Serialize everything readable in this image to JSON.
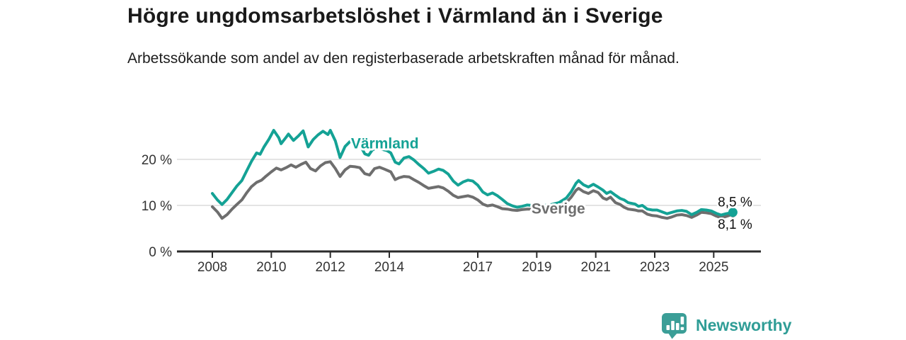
{
  "header": {
    "title": "Högre ungdomsarbetslöshet i Värmland än i Sverige",
    "subtitle": "Arbetssökande som andel av den registerbaserade arbetskraften månad för månad."
  },
  "footer": {
    "brand": "Newsworthy"
  },
  "colors": {
    "varmland": "#14a295",
    "sverige": "#6e6e6e",
    "grid": "#dcdcdc",
    "axis": "#2b2b2b",
    "tick_text": "#333333",
    "title_text": "#1a1a1a",
    "brand_teal": "#2f9d96"
  },
  "chart_data": {
    "type": "line",
    "title": "Högre ungdomsarbetslöshet i Värmland än i Sverige",
    "subtitle": "Arbetssökande som andel av den registerbaserade arbetskraften månad för månad.",
    "x_unit": "year (monthly observations)",
    "y_unit": "percent of labour force",
    "xlim": [
      2006.8,
      2026.6
    ],
    "ylim": [
      0,
      30
    ],
    "grid": "horizontal",
    "legend_position": "inline-labels",
    "y_ticks": [
      {
        "label": "0 %",
        "value": 0
      },
      {
        "label": "10 %",
        "value": 10
      },
      {
        "label": "20 %",
        "value": 20
      }
    ],
    "x_ticks": [
      {
        "label": "2008",
        "value": 2008
      },
      {
        "label": "2010",
        "value": 2010
      },
      {
        "label": "2012",
        "value": 2012
      },
      {
        "label": "2014",
        "value": 2014
      },
      {
        "label": "2017",
        "value": 2017
      },
      {
        "label": "2019",
        "value": 2019
      },
      {
        "label": "2021",
        "value": 2021
      },
      {
        "label": "2023",
        "value": 2023
      },
      {
        "label": "2025",
        "value": 2025
      }
    ],
    "series": [
      {
        "name": "Värmland",
        "color": "#14a295",
        "label_anchor": {
          "x": 2012.7,
          "y": 22.4
        },
        "end_dot_radius": 6.5,
        "end_label": {
          "text": "8,5 %",
          "x": 2025.14,
          "y": 9.8
        },
        "points": [
          [
            2008.0,
            12.6
          ],
          [
            2008.17,
            11.2
          ],
          [
            2008.33,
            10.2
          ],
          [
            2008.5,
            11.3
          ],
          [
            2008.67,
            12.8
          ],
          [
            2008.83,
            14.2
          ],
          [
            2009.0,
            15.4
          ],
          [
            2009.17,
            17.6
          ],
          [
            2009.33,
            19.6
          ],
          [
            2009.5,
            21.4
          ],
          [
            2009.62,
            21.1
          ],
          [
            2009.75,
            22.7
          ],
          [
            2009.92,
            24.4
          ],
          [
            2010.08,
            26.3
          ],
          [
            2010.25,
            24.7
          ],
          [
            2010.33,
            23.4
          ],
          [
            2010.5,
            24.8
          ],
          [
            2010.58,
            25.5
          ],
          [
            2010.75,
            24.1
          ],
          [
            2010.92,
            25.1
          ],
          [
            2011.08,
            26.2
          ],
          [
            2011.25,
            22.7
          ],
          [
            2011.42,
            24.3
          ],
          [
            2011.58,
            25.3
          ],
          [
            2011.75,
            26.1
          ],
          [
            2011.92,
            25.4
          ],
          [
            2012.0,
            26.3
          ],
          [
            2012.17,
            24.0
          ],
          [
            2012.33,
            20.4
          ],
          [
            2012.5,
            22.8
          ],
          [
            2012.67,
            23.9
          ],
          [
            2012.83,
            24.2
          ],
          [
            2013.0,
            23.2
          ],
          [
            2013.17,
            21.2
          ],
          [
            2013.3,
            20.9
          ],
          [
            2013.42,
            22.0
          ],
          [
            2013.58,
            22.6
          ],
          [
            2013.75,
            22.2
          ],
          [
            2013.92,
            21.9
          ],
          [
            2014.05,
            21.4
          ],
          [
            2014.2,
            19.4
          ],
          [
            2014.33,
            19.0
          ],
          [
            2014.5,
            20.3
          ],
          [
            2014.67,
            20.6
          ],
          [
            2014.83,
            19.9
          ],
          [
            2015.0,
            18.9
          ],
          [
            2015.17,
            18.0
          ],
          [
            2015.33,
            17.0
          ],
          [
            2015.5,
            17.4
          ],
          [
            2015.67,
            17.9
          ],
          [
            2015.83,
            17.6
          ],
          [
            2016.0,
            16.8
          ],
          [
            2016.17,
            15.3
          ],
          [
            2016.33,
            14.4
          ],
          [
            2016.5,
            15.1
          ],
          [
            2016.67,
            15.5
          ],
          [
            2016.83,
            15.3
          ],
          [
            2017.0,
            14.4
          ],
          [
            2017.17,
            12.9
          ],
          [
            2017.33,
            12.3
          ],
          [
            2017.5,
            12.7
          ],
          [
            2017.67,
            12.1
          ],
          [
            2017.83,
            11.3
          ],
          [
            2018.0,
            10.4
          ],
          [
            2018.17,
            9.9
          ],
          [
            2018.33,
            9.6
          ],
          [
            2018.5,
            9.8
          ],
          [
            2018.67,
            10.1
          ],
          [
            2018.83,
            10.0
          ],
          [
            2019.0,
            10.0
          ],
          [
            2019.25,
            10.0
          ],
          [
            2019.5,
            10.2
          ],
          [
            2019.75,
            10.6
          ],
          [
            2020.0,
            11.6
          ],
          [
            2020.17,
            13.0
          ],
          [
            2020.33,
            14.8
          ],
          [
            2020.42,
            15.4
          ],
          [
            2020.58,
            14.5
          ],
          [
            2020.75,
            14.0
          ],
          [
            2020.92,
            14.6
          ],
          [
            2021.08,
            14.0
          ],
          [
            2021.25,
            13.3
          ],
          [
            2021.37,
            12.6
          ],
          [
            2021.5,
            13.0
          ],
          [
            2021.67,
            12.2
          ],
          [
            2021.83,
            11.5
          ],
          [
            2021.96,
            11.2
          ],
          [
            2022.1,
            10.6
          ],
          [
            2022.33,
            10.3
          ],
          [
            2022.45,
            9.8
          ],
          [
            2022.58,
            10.0
          ],
          [
            2022.75,
            9.2
          ],
          [
            2022.92,
            9.0
          ],
          [
            2023.08,
            9.0
          ],
          [
            2023.25,
            8.6
          ],
          [
            2023.42,
            8.2
          ],
          [
            2023.58,
            8.5
          ],
          [
            2023.75,
            8.8
          ],
          [
            2023.92,
            8.9
          ],
          [
            2024.08,
            8.7
          ],
          [
            2024.25,
            8.0
          ],
          [
            2024.42,
            8.5
          ],
          [
            2024.58,
            9.1
          ],
          [
            2024.75,
            9.0
          ],
          [
            2024.92,
            8.8
          ],
          [
            2025.08,
            8.3
          ],
          [
            2025.25,
            7.9
          ],
          [
            2025.42,
            8.2
          ],
          [
            2025.65,
            8.5
          ]
        ]
      },
      {
        "name": "Sverige",
        "color": "#6e6e6e",
        "label_anchor": {
          "x": 2018.82,
          "y": 8.2
        },
        "end_dot_radius": 4.5,
        "end_label": {
          "text": "8,1 %",
          "x": 2025.14,
          "y": 4.9
        },
        "points": [
          [
            2008.0,
            9.7
          ],
          [
            2008.17,
            8.6
          ],
          [
            2008.33,
            7.2
          ],
          [
            2008.5,
            8.0
          ],
          [
            2008.67,
            9.2
          ],
          [
            2008.83,
            10.2
          ],
          [
            2009.0,
            11.2
          ],
          [
            2009.17,
            12.8
          ],
          [
            2009.33,
            14.1
          ],
          [
            2009.5,
            15.0
          ],
          [
            2009.67,
            15.5
          ],
          [
            2009.83,
            16.4
          ],
          [
            2010.0,
            17.3
          ],
          [
            2010.17,
            18.1
          ],
          [
            2010.33,
            17.7
          ],
          [
            2010.5,
            18.2
          ],
          [
            2010.67,
            18.8
          ],
          [
            2010.83,
            18.3
          ],
          [
            2011.0,
            18.9
          ],
          [
            2011.17,
            19.4
          ],
          [
            2011.33,
            18.0
          ],
          [
            2011.5,
            17.5
          ],
          [
            2011.67,
            18.6
          ],
          [
            2011.83,
            19.3
          ],
          [
            2012.0,
            19.5
          ],
          [
            2012.17,
            18.0
          ],
          [
            2012.33,
            16.3
          ],
          [
            2012.5,
            17.7
          ],
          [
            2012.67,
            18.5
          ],
          [
            2012.83,
            18.4
          ],
          [
            2013.0,
            18.2
          ],
          [
            2013.17,
            16.9
          ],
          [
            2013.33,
            16.6
          ],
          [
            2013.5,
            18.0
          ],
          [
            2013.67,
            18.3
          ],
          [
            2013.83,
            17.9
          ],
          [
            2014.05,
            17.3
          ],
          [
            2014.2,
            15.6
          ],
          [
            2014.33,
            16.0
          ],
          [
            2014.5,
            16.3
          ],
          [
            2014.67,
            16.2
          ],
          [
            2014.83,
            15.6
          ],
          [
            2015.0,
            15.0
          ],
          [
            2015.17,
            14.3
          ],
          [
            2015.33,
            13.7
          ],
          [
            2015.5,
            13.9
          ],
          [
            2015.67,
            14.1
          ],
          [
            2015.83,
            13.8
          ],
          [
            2016.0,
            13.1
          ],
          [
            2016.17,
            12.2
          ],
          [
            2016.33,
            11.7
          ],
          [
            2016.5,
            11.9
          ],
          [
            2016.67,
            12.1
          ],
          [
            2016.83,
            11.8
          ],
          [
            2017.0,
            11.2
          ],
          [
            2017.17,
            10.3
          ],
          [
            2017.33,
            9.9
          ],
          [
            2017.5,
            10.1
          ],
          [
            2017.67,
            9.7
          ],
          [
            2017.83,
            9.3
          ],
          [
            2018.0,
            9.2
          ],
          [
            2018.17,
            9.0
          ],
          [
            2018.33,
            8.9
          ],
          [
            2018.5,
            9.1
          ],
          [
            2018.67,
            9.2
          ],
          [
            2018.83,
            9.2
          ],
          [
            2019.0,
            9.3
          ],
          [
            2019.25,
            9.4
          ],
          [
            2019.5,
            9.6
          ],
          [
            2019.75,
            9.9
          ],
          [
            2020.0,
            10.6
          ],
          [
            2020.17,
            11.8
          ],
          [
            2020.33,
            13.3
          ],
          [
            2020.42,
            13.7
          ],
          [
            2020.58,
            13.0
          ],
          [
            2020.75,
            12.6
          ],
          [
            2020.92,
            13.2
          ],
          [
            2021.08,
            12.8
          ],
          [
            2021.25,
            11.6
          ],
          [
            2021.37,
            11.3
          ],
          [
            2021.5,
            11.8
          ],
          [
            2021.67,
            10.6
          ],
          [
            2021.83,
            10.2
          ],
          [
            2021.96,
            9.6
          ],
          [
            2022.1,
            9.2
          ],
          [
            2022.33,
            9.0
          ],
          [
            2022.45,
            8.8
          ],
          [
            2022.58,
            8.8
          ],
          [
            2022.75,
            8.1
          ],
          [
            2022.92,
            7.8
          ],
          [
            2023.08,
            7.7
          ],
          [
            2023.25,
            7.4
          ],
          [
            2023.42,
            7.2
          ],
          [
            2023.58,
            7.5
          ],
          [
            2023.75,
            7.9
          ],
          [
            2023.92,
            8.0
          ],
          [
            2024.08,
            7.8
          ],
          [
            2024.25,
            7.4
          ],
          [
            2024.42,
            7.9
          ],
          [
            2024.58,
            8.5
          ],
          [
            2024.75,
            8.4
          ],
          [
            2024.92,
            8.2
          ],
          [
            2025.08,
            7.7
          ],
          [
            2025.25,
            7.3
          ],
          [
            2025.42,
            7.6
          ],
          [
            2025.65,
            8.1
          ]
        ]
      }
    ]
  }
}
